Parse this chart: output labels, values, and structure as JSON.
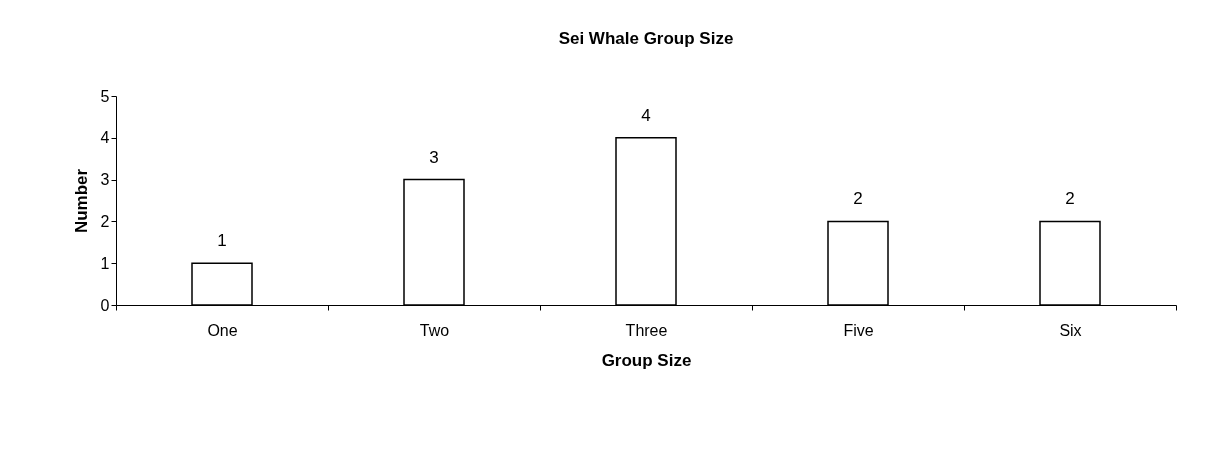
{
  "chart_data": {
    "type": "bar",
    "title": "Sei Whale Group Size",
    "xlabel": "Group Size",
    "ylabel": "Number",
    "categories": [
      "One",
      "Two",
      "Three",
      "Five",
      "Six"
    ],
    "values": [
      1,
      3,
      4,
      2,
      2
    ],
    "color": "#ffffff",
    "ylim": [
      0,
      5
    ],
    "yticks": [
      0,
      1,
      2,
      3,
      4,
      5
    ],
    "grid": false,
    "data_labels": true
  }
}
